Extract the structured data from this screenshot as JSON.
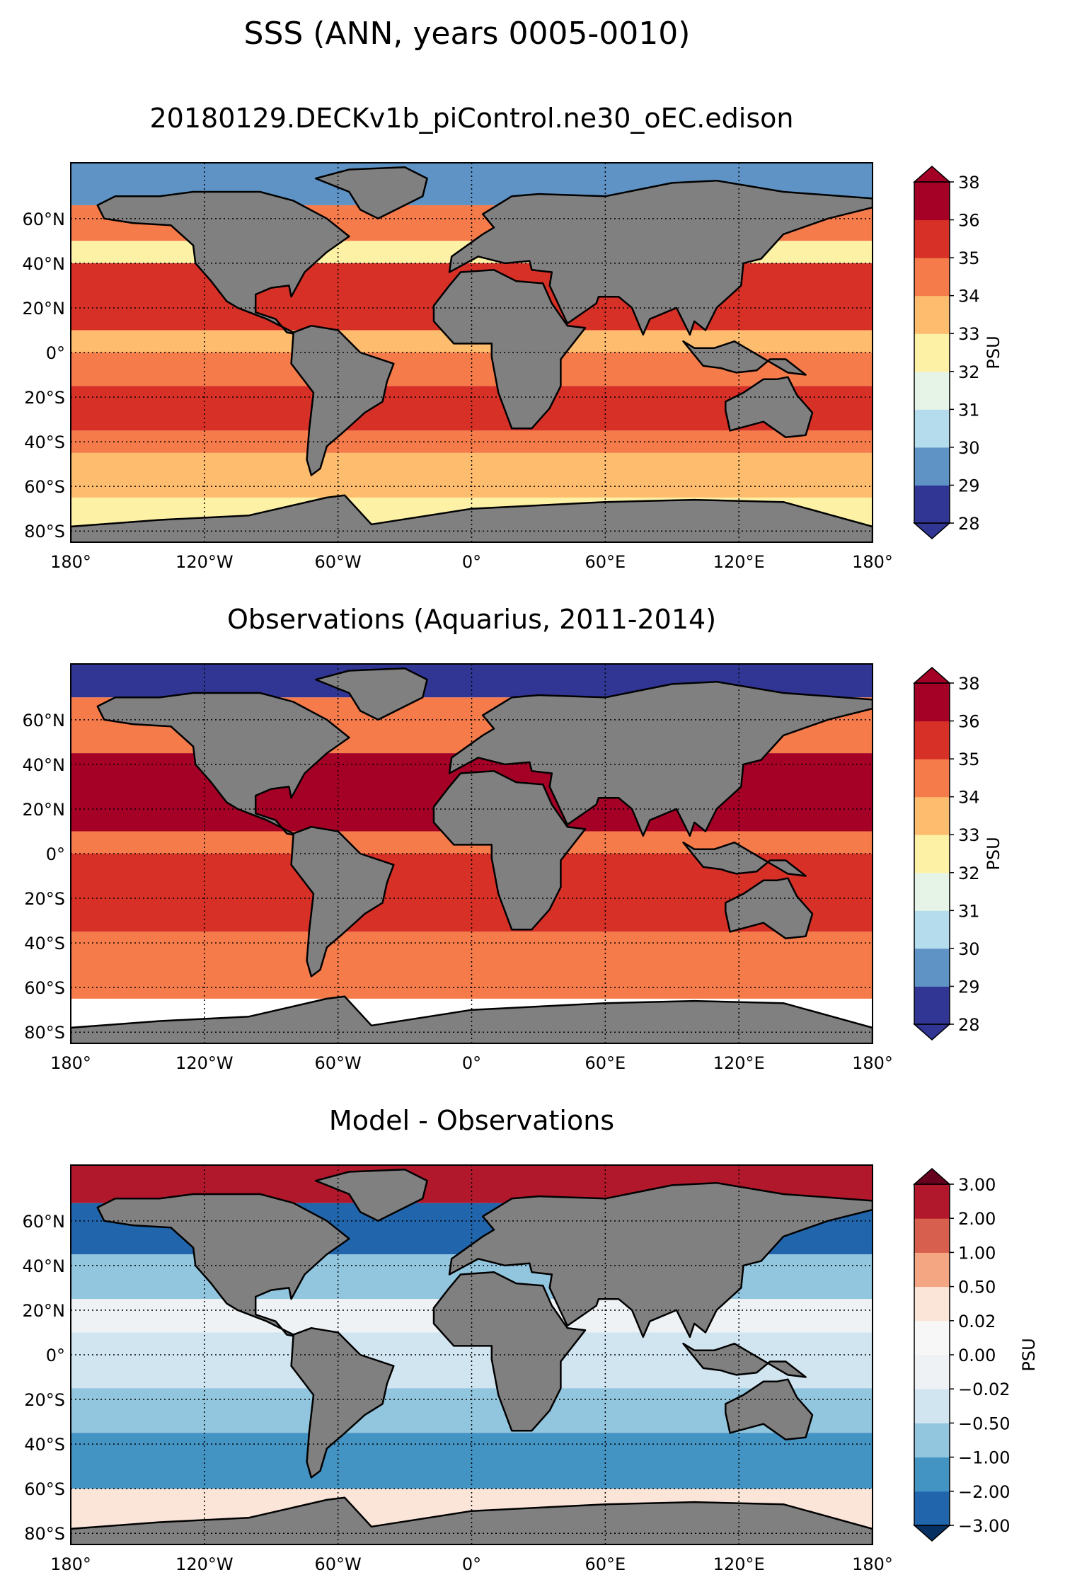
{
  "figure": {
    "suptitle": "SSS (ANN, years 0005-0010)"
  },
  "panels": [
    {
      "title": "20180129.DECKv1b_piControl.ne30_oEC.edison",
      "colorbar": {
        "label": "PSU",
        "levels": [
          "28",
          "29",
          "30",
          "31",
          "32",
          "33",
          "34",
          "35",
          "36",
          "38"
        ],
        "colors": [
          "#313695",
          "#5f93c5",
          "#b4dced",
          "#e6f4e7",
          "#fdf1a6",
          "#fdbc6e",
          "#f57b4a",
          "#d73027",
          "#a50026"
        ],
        "under": "#313695",
        "over": "#a50026"
      },
      "ocean_bands": [
        {
          "lat_from": 90,
          "lat_to": 66,
          "color": "#5f93c5"
        },
        {
          "lat_from": 66,
          "lat_to": 50,
          "color": "#f57b4a"
        },
        {
          "lat_from": 50,
          "lat_to": 40,
          "color": "#fdf1a6"
        },
        {
          "lat_from": 40,
          "lat_to": 10,
          "color": "#d73027"
        },
        {
          "lat_from": 10,
          "lat_to": 0,
          "color": "#fdbc6e"
        },
        {
          "lat_from": 0,
          "lat_to": -15,
          "color": "#f57b4a"
        },
        {
          "lat_from": -15,
          "lat_to": -35,
          "color": "#d73027"
        },
        {
          "lat_from": -35,
          "lat_to": -45,
          "color": "#f57b4a"
        },
        {
          "lat_from": -45,
          "lat_to": -65,
          "color": "#fdbc6e"
        },
        {
          "lat_from": -65,
          "lat_to": -90,
          "color": "#fdf1a6"
        }
      ]
    },
    {
      "title": "Observations (Aquarius, 2011-2014)",
      "colorbar": {
        "label": "PSU",
        "levels": [
          "28",
          "29",
          "30",
          "31",
          "32",
          "33",
          "34",
          "35",
          "36",
          "38"
        ],
        "colors": [
          "#313695",
          "#5f93c5",
          "#b4dced",
          "#e6f4e7",
          "#fdf1a6",
          "#fdbc6e",
          "#f57b4a",
          "#d73027",
          "#a50026"
        ],
        "under": "#313695",
        "over": "#a50026"
      },
      "ocean_bands": [
        {
          "lat_from": 90,
          "lat_to": 70,
          "color": "#313695"
        },
        {
          "lat_from": 70,
          "lat_to": 45,
          "color": "#f57b4a"
        },
        {
          "lat_from": 45,
          "lat_to": 10,
          "color": "#a50026"
        },
        {
          "lat_from": 10,
          "lat_to": 0,
          "color": "#f57b4a"
        },
        {
          "lat_from": 0,
          "lat_to": -35,
          "color": "#d73027"
        },
        {
          "lat_from": -35,
          "lat_to": -65,
          "color": "#f57b4a"
        },
        {
          "lat_from": -65,
          "lat_to": -90,
          "color": "#ffffff"
        }
      ]
    },
    {
      "title": "Model - Observations",
      "colorbar": {
        "label": "PSU",
        "levels": [
          "−3.00",
          "−2.00",
          "−1.00",
          "−0.50",
          "−0.02",
          "0.00",
          "0.02",
          "0.50",
          "1.00",
          "2.00",
          "3.00"
        ],
        "colors": [
          "#2166ac",
          "#4393c3",
          "#92c5de",
          "#d1e5f0",
          "#eef2f5",
          "#f7f7f7",
          "#fbe4d8",
          "#f4a582",
          "#d6604d",
          "#b2182b"
        ],
        "under": "#053061",
        "over": "#67001f"
      },
      "ocean_bands": [
        {
          "lat_from": 90,
          "lat_to": 68,
          "color": "#b2182b"
        },
        {
          "lat_from": 68,
          "lat_to": 45,
          "color": "#2166ac"
        },
        {
          "lat_from": 45,
          "lat_to": 25,
          "color": "#92c5de"
        },
        {
          "lat_from": 25,
          "lat_to": 10,
          "color": "#eef2f5"
        },
        {
          "lat_from": 10,
          "lat_to": -15,
          "color": "#d1e5f0"
        },
        {
          "lat_from": -15,
          "lat_to": -35,
          "color": "#92c5de"
        },
        {
          "lat_from": -35,
          "lat_to": -60,
          "color": "#4393c3"
        },
        {
          "lat_from": -60,
          "lat_to": -90,
          "color": "#fbe4d8"
        }
      ]
    }
  ],
  "axes": {
    "lon_ticks": [
      {
        "lon": -180,
        "label": "180°"
      },
      {
        "lon": -120,
        "label": "120°W"
      },
      {
        "lon": -60,
        "label": "60°W"
      },
      {
        "lon": 0,
        "label": "0°"
      },
      {
        "lon": 60,
        "label": "60°E"
      },
      {
        "lon": 120,
        "label": "120°E"
      },
      {
        "lon": 180,
        "label": "180°"
      }
    ],
    "lat_ticks": [
      {
        "lat": 60,
        "label": "60°N"
      },
      {
        "lat": 40,
        "label": "40°N"
      },
      {
        "lat": 20,
        "label": "20°N"
      },
      {
        "lat": 0,
        "label": "0°"
      },
      {
        "lat": -20,
        "label": "20°S"
      },
      {
        "lat": -40,
        "label": "40°S"
      },
      {
        "lat": -60,
        "label": "60°S"
      },
      {
        "lat": -80,
        "label": "80°S"
      }
    ],
    "lat_range": [
      -85,
      85
    ],
    "lon_range": [
      -180,
      180
    ]
  },
  "colors": {
    "land": "#808080",
    "coastline": "#000000",
    "grid": "#000000"
  }
}
